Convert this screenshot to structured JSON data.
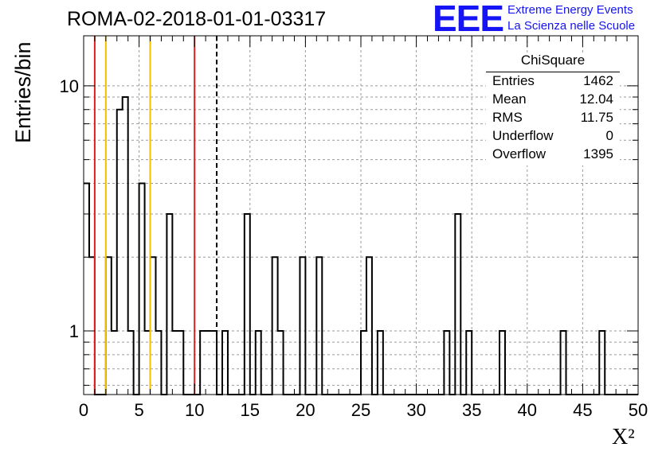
{
  "title": "ROMA-02-2018-01-01-03317",
  "logo": {
    "text": "EEE",
    "line1": "Extreme Energy Events",
    "line2": "La Scienza nelle Scuole",
    "color": "#1414f5"
  },
  "stats": {
    "title": "ChiSquare",
    "rows": [
      {
        "key": "Entries",
        "value": "1462"
      },
      {
        "key": "Mean",
        "value": "12.04"
      },
      {
        "key": "RMS",
        "value": "11.75"
      },
      {
        "key": "Underflow",
        "value": "0"
      },
      {
        "key": "Overflow",
        "value": "1395"
      }
    ]
  },
  "chart_data": {
    "type": "bar",
    "xlabel": "X²",
    "ylabel": "Entries/bin",
    "xlim": [
      0,
      50
    ],
    "ylim": [
      0.55,
      16
    ],
    "log_y": true,
    "grid": true,
    "x_ticks": [
      0,
      5,
      10,
      15,
      20,
      25,
      30,
      35,
      40,
      45,
      50
    ],
    "y_tick_labels": [
      1,
      10
    ],
    "bin_width": 0.5,
    "bins": [
      {
        "x": 0.0,
        "y": 4
      },
      {
        "x": 0.5,
        "y": 2
      },
      {
        "x": 2.0,
        "y": 2
      },
      {
        "x": 2.5,
        "y": 1
      },
      {
        "x": 3.0,
        "y": 8
      },
      {
        "x": 3.5,
        "y": 9
      },
      {
        "x": 4.0,
        "y": 1
      },
      {
        "x": 5.0,
        "y": 4
      },
      {
        "x": 5.5,
        "y": 1
      },
      {
        "x": 6.0,
        "y": 2
      },
      {
        "x": 6.5,
        "y": 1
      },
      {
        "x": 7.5,
        "y": 3
      },
      {
        "x": 8.0,
        "y": 1
      },
      {
        "x": 8.5,
        "y": 1
      },
      {
        "x": 10.5,
        "y": 1
      },
      {
        "x": 11.0,
        "y": 1
      },
      {
        "x": 11.5,
        "y": 1
      },
      {
        "x": 12.5,
        "y": 1
      },
      {
        "x": 14.5,
        "y": 3
      },
      {
        "x": 15.5,
        "y": 1
      },
      {
        "x": 17.0,
        "y": 2
      },
      {
        "x": 17.5,
        "y": 1
      },
      {
        "x": 19.5,
        "y": 2
      },
      {
        "x": 21.0,
        "y": 2
      },
      {
        "x": 25.0,
        "y": 1
      },
      {
        "x": 25.5,
        "y": 2
      },
      {
        "x": 26.5,
        "y": 1
      },
      {
        "x": 32.5,
        "y": 1
      },
      {
        "x": 33.5,
        "y": 3
      },
      {
        "x": 34.5,
        "y": 1
      },
      {
        "x": 37.5,
        "y": 1
      },
      {
        "x": 43.0,
        "y": 1
      },
      {
        "x": 46.5,
        "y": 1
      }
    ],
    "vlines": [
      {
        "x": 1,
        "color": "#e02020",
        "style": "solid"
      },
      {
        "x": 10,
        "color": "#e02020",
        "style": "solid"
      },
      {
        "x": 2,
        "color": "#f0c000",
        "style": "solid"
      },
      {
        "x": 6,
        "color": "#f0c000",
        "style": "solid"
      },
      {
        "x": 12,
        "color": "#000000",
        "style": "dashed"
      }
    ]
  }
}
